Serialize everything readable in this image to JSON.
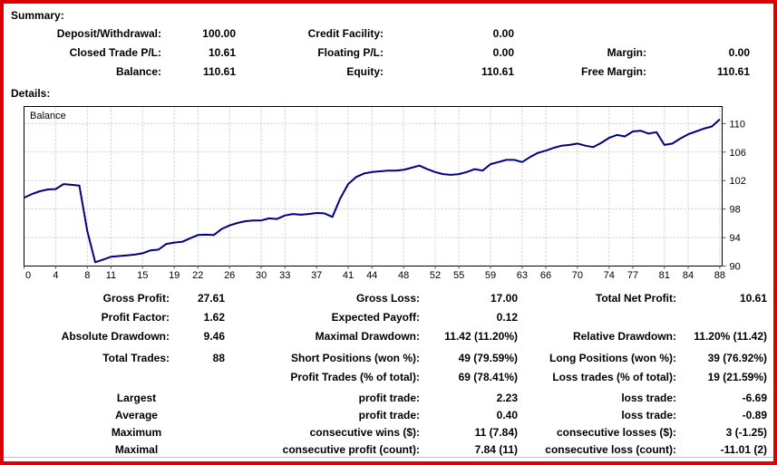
{
  "colors": {
    "frame_border": "#dd0000",
    "balance_line": "#000080",
    "grid": "#c9c9c9",
    "text": "#000000"
  },
  "summary": {
    "heading": "Summary:",
    "rows": [
      [
        "Deposit/Withdrawal:",
        "100.00",
        "Credit Facility:",
        "0.00",
        "",
        ""
      ],
      [
        "Closed Trade P/L:",
        "10.61",
        "Floating P/L:",
        "0.00",
        "Margin:",
        "0.00"
      ],
      [
        "Balance:",
        "110.61",
        "Equity:",
        "110.61",
        "Free Margin:",
        "110.61"
      ]
    ]
  },
  "details": {
    "heading": "Details:",
    "rows": [
      {
        "cells": [
          "Gross Profit:",
          "27.61",
          "Gross Loss:",
          "17.00",
          "Total Net Profit:",
          "10.61"
        ]
      },
      {
        "cells": [
          "Profit Factor:",
          "1.62",
          "Expected Payoff:",
          "0.12",
          "",
          ""
        ]
      },
      {
        "cells": [
          "Absolute Drawdown:",
          "9.46",
          "Maximal Drawdown:",
          "11.42 (11.20%)",
          "Relative Drawdown:",
          "11.20% (11.42)"
        ]
      },
      {
        "spacer": true
      },
      {
        "cells": [
          "Total Trades:",
          "88",
          "Short Positions (won %):",
          "49 (79.59%)",
          "Long Positions (won %):",
          "39 (76.92%)"
        ]
      },
      {
        "cells": [
          "",
          "",
          "Profit Trades (% of total):",
          "69 (78.41%)",
          "Loss trades (% of total):",
          "19 (21.59%)"
        ]
      },
      {
        "spacer": true
      },
      {
        "cells": [
          "Largest",
          "",
          "profit trade:",
          "2.23",
          "loss trade:",
          "-6.69"
        ],
        "centerFirst": true
      },
      {
        "cells": [
          "Average",
          "",
          "profit trade:",
          "0.40",
          "loss trade:",
          "-0.89"
        ],
        "centerFirst": true
      },
      {
        "cells": [
          "Maximum",
          "",
          "consecutive wins ($):",
          "11 (7.84)",
          "consecutive losses ($):",
          "3 (-1.25)"
        ],
        "centerFirst": true
      },
      {
        "cells": [
          "Maximal",
          "",
          "consecutive profit (count):",
          "7.84 (11)",
          "consecutive loss (count):",
          "-11.01 (2)"
        ],
        "centerFirst": true
      }
    ]
  },
  "chart_data": {
    "type": "line",
    "title": "Balance",
    "xlabel": "",
    "ylabel": "",
    "grid": true,
    "legend_position": "none",
    "xlim": [
      0,
      88.3
    ],
    "ylim": [
      90,
      112.4
    ],
    "x_ticks": [
      0,
      4,
      8,
      11,
      15,
      19,
      22,
      26,
      30,
      33,
      37,
      41,
      44,
      48,
      52,
      55,
      59,
      63,
      66,
      70,
      74,
      77,
      81,
      84,
      88
    ],
    "y_ticks": [
      90,
      94,
      98,
      102,
      106,
      110
    ],
    "series": [
      {
        "name": "Balance",
        "values": [
          99.6,
          100.1,
          100.5,
          100.75,
          100.8,
          101.5,
          101.4,
          101.3,
          94.9,
          90.54,
          90.9,
          91.3,
          91.4,
          91.5,
          91.6,
          91.8,
          92.2,
          92.3,
          93.1,
          93.3,
          93.4,
          93.9,
          94.35,
          94.4,
          94.35,
          95.2,
          95.7,
          96.05,
          96.3,
          96.4,
          96.4,
          96.7,
          96.6,
          97.1,
          97.3,
          97.2,
          97.3,
          97.45,
          97.4,
          96.9,
          99.5,
          101.5,
          102.5,
          103.0,
          103.2,
          103.3,
          103.4,
          103.4,
          103.5,
          103.8,
          104.1,
          103.6,
          103.2,
          102.9,
          102.8,
          102.9,
          103.2,
          103.6,
          103.4,
          104.3,
          104.6,
          104.9,
          104.9,
          104.6,
          105.3,
          105.9,
          106.2,
          106.6,
          106.9,
          107.0,
          107.2,
          106.9,
          106.7,
          107.3,
          108.0,
          108.4,
          108.2,
          108.9,
          109.0,
          108.6,
          108.8,
          107.0,
          107.2,
          107.9,
          108.5,
          108.9,
          109.3,
          109.6,
          110.61
        ]
      }
    ]
  }
}
